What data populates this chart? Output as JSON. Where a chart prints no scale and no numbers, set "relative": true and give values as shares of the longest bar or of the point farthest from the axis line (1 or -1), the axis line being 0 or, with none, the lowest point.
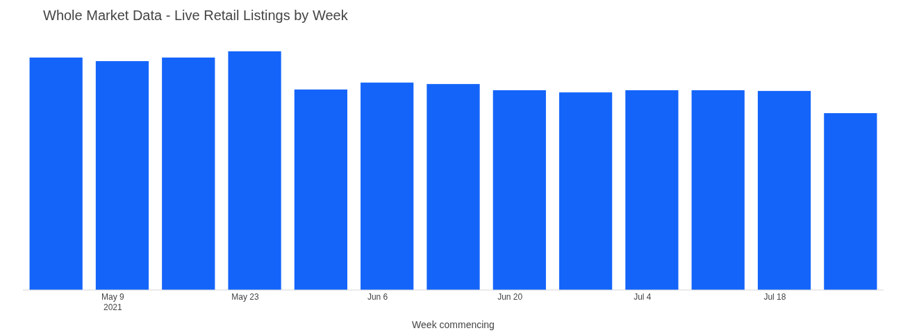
{
  "chart_data": {
    "type": "bar",
    "title": "Whole Market Data - Live Retail Listings by Week",
    "xlabel": "Week commencing",
    "relative": true,
    "x": [
      "2021-05-03",
      "2021-05-10",
      "2021-05-17",
      "2021-05-24",
      "2021-05-31",
      "2021-06-07",
      "2021-06-14",
      "2021-06-21",
      "2021-06-28",
      "2021-07-05",
      "2021-07-12",
      "2021-07-19",
      "2021-07-26"
    ],
    "values": [
      0.974,
      0.959,
      0.974,
      1,
      0.84,
      0.869,
      0.863,
      0.837,
      0.828,
      0.837,
      0.837,
      0.834,
      0.741
    ],
    "color": "#1464fa",
    "xlim": [
      "2021-04-29T12:00",
      "2021-07-29T12:00"
    ],
    "xticks": [
      {
        "value": "2021-05-09",
        "label": "May 9\n2021"
      },
      {
        "value": "2021-05-23",
        "label": "May 23"
      },
      {
        "value": "2021-06-06",
        "label": "Jun 6"
      },
      {
        "value": "2021-06-20",
        "label": "Jun 20"
      },
      {
        "value": "2021-07-04",
        "label": "Jul 4"
      },
      {
        "value": "2021-07-18",
        "label": "Jul 18"
      }
    ]
  }
}
